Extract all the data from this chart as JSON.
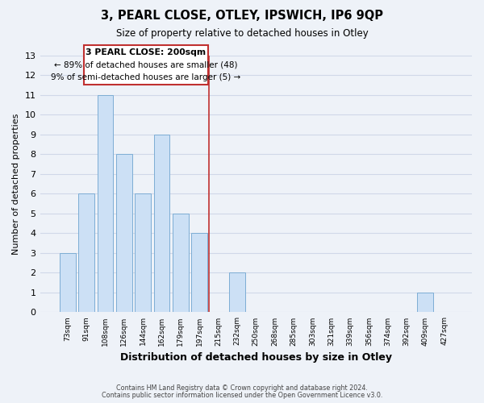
{
  "title": "3, PEARL CLOSE, OTLEY, IPSWICH, IP6 9QP",
  "subtitle": "Size of property relative to detached houses in Otley",
  "xlabel": "Distribution of detached houses by size in Otley",
  "ylabel": "Number of detached properties",
  "bar_labels": [
    "73sqm",
    "91sqm",
    "108sqm",
    "126sqm",
    "144sqm",
    "162sqm",
    "179sqm",
    "197sqm",
    "215sqm",
    "232sqm",
    "250sqm",
    "268sqm",
    "285sqm",
    "303sqm",
    "321sqm",
    "339sqm",
    "356sqm",
    "374sqm",
    "392sqm",
    "409sqm",
    "427sqm"
  ],
  "bar_values": [
    3,
    6,
    11,
    8,
    6,
    9,
    5,
    4,
    0,
    2,
    0,
    0,
    0,
    0,
    0,
    0,
    0,
    0,
    0,
    1,
    0
  ],
  "bar_face_color": "#cce0f5",
  "bar_edge_color": "#7dadd4",
  "annotation_line1": "3 PEARL CLOSE: 200sqm",
  "annotation_line2": "← 89% of detached houses are smaller (48)",
  "annotation_line3": "9% of semi-detached houses are larger (5) →",
  "ylim": [
    0,
    13
  ],
  "yticks": [
    0,
    1,
    2,
    3,
    4,
    5,
    6,
    7,
    8,
    9,
    10,
    11,
    12,
    13
  ],
  "footer_line1": "Contains HM Land Registry data © Crown copyright and database right 2024.",
  "footer_line2": "Contains public sector information licensed under the Open Government Licence v3.0.",
  "background_color": "#eef2f8",
  "grid_color": "#d0d8e8",
  "plot_bg_color": "#eef2f8",
  "annotation_box_edge": "#c03030",
  "annotation_box_face": "#ffffff",
  "vline_color": "#c03030",
  "vline_x": 7.5,
  "title_fontsize": 10.5,
  "subtitle_fontsize": 8.5
}
